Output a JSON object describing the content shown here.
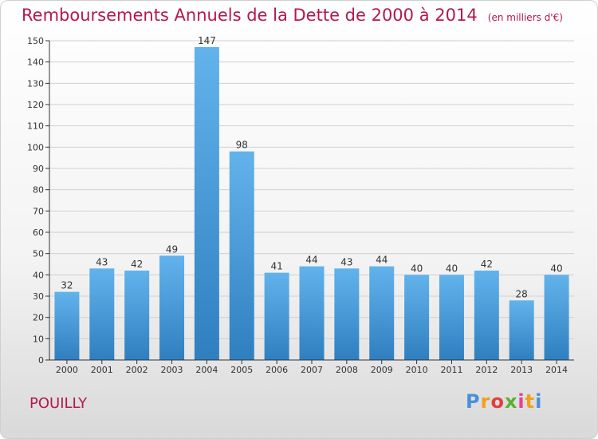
{
  "title": "Remboursements Annuels de la Dette de 2000 à 2014",
  "unit_note": "(en milliers d'€)",
  "commune": "POUILLY",
  "logo": {
    "letters": [
      "P",
      "r",
      "o",
      "x",
      "i",
      "t",
      "i"
    ],
    "colors": [
      "#4a90d9",
      "#f0a020",
      "#e04040",
      "#5cb030",
      "#e84090",
      "#f0a020",
      "#4a90d9"
    ]
  },
  "colors": {
    "bar_top": "#62b3ec",
    "bar_bottom": "#2f7fc0",
    "title": "#b5174f",
    "grid": "#d0d0d0",
    "axis": "#333333"
  },
  "chart_data": {
    "type": "bar",
    "categories": [
      "2000",
      "2001",
      "2002",
      "2003",
      "2004",
      "2005",
      "2006",
      "2007",
      "2008",
      "2009",
      "2010",
      "2011",
      "2012",
      "2013",
      "2014"
    ],
    "values": [
      32,
      43,
      42,
      49,
      147,
      98,
      41,
      44,
      43,
      44,
      40,
      40,
      42,
      28,
      40
    ],
    "ylim": [
      0,
      150
    ],
    "yticks": [
      0,
      10,
      20,
      30,
      40,
      50,
      60,
      70,
      80,
      90,
      100,
      110,
      120,
      130,
      140,
      150
    ],
    "grid": true,
    "data_labels": true
  }
}
